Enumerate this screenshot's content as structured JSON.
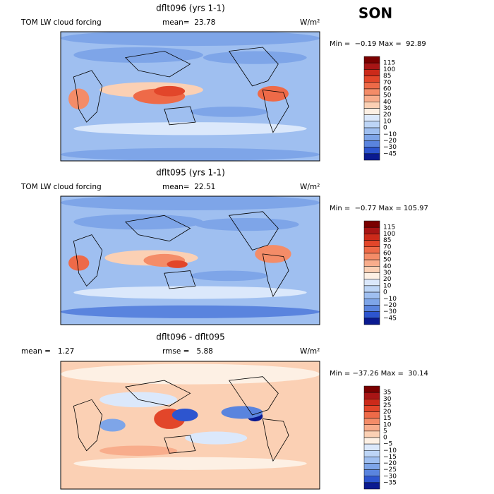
{
  "header": {
    "season": "SON"
  },
  "panels": [
    {
      "title": "dflt096 (yrs 1-1)",
      "left_label": "TOM LW cloud forcing",
      "center_label": "mean=  23.78",
      "units": "W/m²",
      "range_label": "Min =  −0.19 Max =  92.89",
      "colorbar": {
        "labels": [
          "115",
          "100",
          "85",
          "70",
          "60",
          "50",
          "40",
          "30",
          "20",
          "10",
          "0",
          "−10",
          "−20",
          "−30",
          "−45"
        ],
        "colors": [
          "#7a0000",
          "#a81515",
          "#cc2a1a",
          "#e2462a",
          "#ee6a48",
          "#f48c68",
          "#f8ad8c",
          "#fbd0b4",
          "#fdf0e4",
          "#dbe8fb",
          "#bdd5f6",
          "#9fbff0",
          "#7ea5e8",
          "#5a84de",
          "#2d55cf",
          "#0a1a90"
        ]
      }
    },
    {
      "title": "dflt095 (yrs 1-1)",
      "left_label": "TOM LW cloud forcing",
      "center_label": "mean=  22.51",
      "units": "W/m²",
      "range_label": "Min =  −0.77 Max = 105.97",
      "colorbar": {
        "labels": [
          "115",
          "100",
          "85",
          "70",
          "60",
          "50",
          "40",
          "30",
          "20",
          "10",
          "0",
          "−10",
          "−20",
          "−30",
          "−45"
        ],
        "colors": [
          "#7a0000",
          "#a81515",
          "#cc2a1a",
          "#e2462a",
          "#ee6a48",
          "#f48c68",
          "#f8ad8c",
          "#fbd0b4",
          "#fdf0e4",
          "#dbe8fb",
          "#bdd5f6",
          "#9fbff0",
          "#7ea5e8",
          "#5a84de",
          "#2d55cf",
          "#0a1a90"
        ]
      }
    },
    {
      "title": "dflt096 - dflt095",
      "left_label": "mean =   1.27",
      "center_label": "rmse =   5.88",
      "units": "W/m²",
      "range_label": "Min = −37.26 Max =  30.14",
      "colorbar": {
        "labels": [
          "35",
          "30",
          "25",
          "20",
          "15",
          "10",
          "5",
          "0",
          "−5",
          "−10",
          "−15",
          "−20",
          "−25",
          "−30",
          "−35"
        ],
        "colors": [
          "#7a0000",
          "#a81515",
          "#cc2a1a",
          "#e2462a",
          "#ee6a48",
          "#f48c68",
          "#f8ad8c",
          "#fbd0b4",
          "#fdf0e4",
          "#dbe8fb",
          "#bdd5f6",
          "#9fbff0",
          "#7ea5e8",
          "#5a84de",
          "#2d55cf",
          "#0a1a90"
        ]
      }
    }
  ]
}
